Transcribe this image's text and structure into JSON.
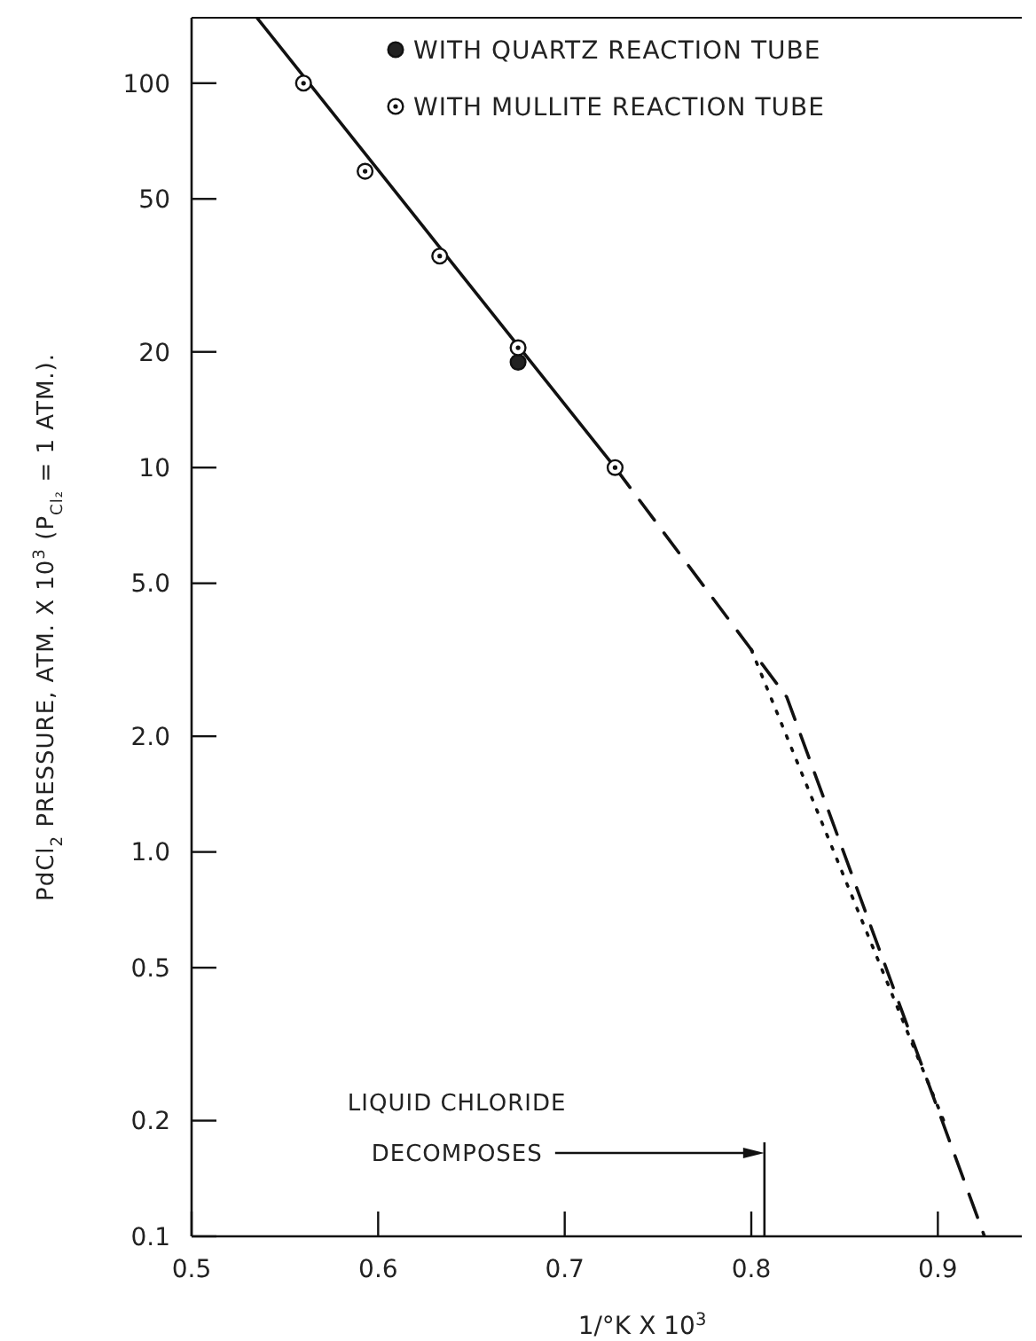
{
  "chart_data": {
    "type": "scatter",
    "xlabel": "1/°K X 10$^{3}$",
    "ylabel": "PdCl$_{2}$ PRESSURE, ATM. X 10$^{3}$ (P$_{Cl₂}$ = 1 ATM.).",
    "log": "y",
    "xlim": [
      0.5,
      0.945
    ],
    "xticks": [
      0.5,
      0.6,
      0.7,
      0.8,
      0.9
    ],
    "ylim": [
      0.1,
      148
    ],
    "yticks": [
      100,
      50,
      20,
      10,
      {
        "value": 5,
        "label": "5.0"
      },
      {
        "value": 2,
        "label": "2.0"
      },
      {
        "value": 1,
        "label": "1.0"
      },
      0.5,
      0.2,
      0.1
    ],
    "legend": "top",
    "grid": false,
    "series": [
      {
        "type": "line",
        "line_style": "solid",
        "color": "#111111",
        "x": [
          0.535,
          0.727
        ],
        "values": [
          148,
          10
        ]
      },
      {
        "type": "line",
        "line_style": "dashed",
        "color": "#111111",
        "x": [
          0.727,
          0.819,
          0.925
        ],
        "values": [
          10,
          2.53,
          0.1
        ]
      },
      {
        "type": "line",
        "line_style": "dotted",
        "color": "#111111",
        "x": [
          0.8,
          0.905
        ],
        "values": [
          3.36,
          0.19
        ]
      },
      {
        "name": "WITH QUARTZ REACTION TUBE",
        "marker": "circle",
        "color": "#222222",
        "x": [
          0.675
        ],
        "values": [
          18.8
        ]
      },
      {
        "name": "WITH MULLITE REACTION TUBE",
        "marker": "circle",
        "color": "#ffffff",
        "x": [
          0.56,
          0.593,
          0.633,
          0.675,
          0.727
        ],
        "values": [
          100,
          59,
          35.5,
          20.5,
          10
        ]
      }
    ],
    "annotations": [
      "LIQUID CHLORIDE DECOMPOSES"
    ]
  }
}
